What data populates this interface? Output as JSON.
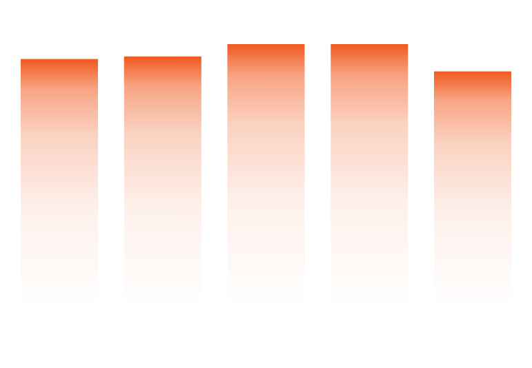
{
  "chart_data": {
    "type": "bar",
    "categories": [
      "",
      "",
      "",
      "",
      ""
    ],
    "values": [
      100,
      101,
      106,
      106,
      95
    ],
    "ylim": [
      0,
      106
    ],
    "grid": false,
    "legend": "none",
    "colors": {
      "bar_top": "#f05a1f",
      "bar_bottom": "#ffffff",
      "background": "#ffffff"
    }
  }
}
